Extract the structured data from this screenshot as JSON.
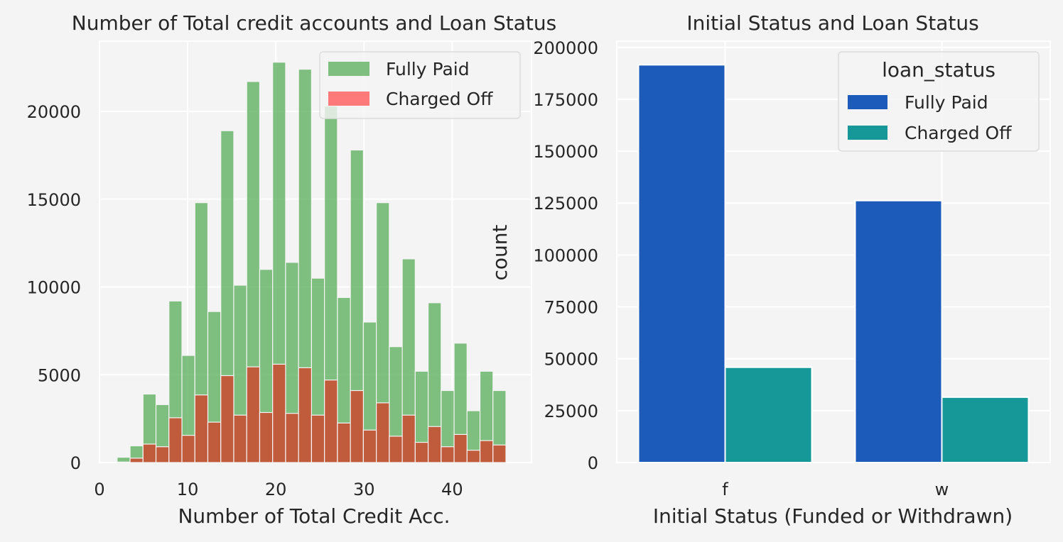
{
  "chart_data": [
    {
      "type": "bar",
      "subtype": "histogram-overlay",
      "title": "Number of Total credit accounts and Loan Status",
      "xlabel": "Number of Total Credit Acc.",
      "ylabel": "",
      "xlim": [
        0,
        49
      ],
      "ylim": [
        0,
        24000
      ],
      "xticks": [
        0,
        10,
        20,
        30,
        40
      ],
      "yticks": [
        0,
        5000,
        10000,
        15000,
        20000
      ],
      "grid": true,
      "legend_position": "top-right",
      "bin_width": 1.47,
      "bin_start": 2.0,
      "series": [
        {
          "name": "Fully Paid",
          "color": "#4ca64c",
          "values": [
            300,
            950,
            3900,
            3300,
            9200,
            6100,
            14800,
            8600,
            18900,
            10100,
            21700,
            11000,
            22800,
            11400,
            22400,
            10500,
            20300,
            9400,
            17800,
            8000,
            14800,
            6600,
            11600,
            5200,
            9100,
            4100,
            6800,
            2950,
            5200,
            4100
          ]
        },
        {
          "name": "Charged Off",
          "color": "#ff6b6b",
          "values": [
            30,
            250,
            1050,
            900,
            2550,
            1550,
            3850,
            2300,
            4950,
            2700,
            5450,
            2850,
            5600,
            2800,
            5400,
            2700,
            4700,
            2250,
            4100,
            1850,
            3400,
            1500,
            2700,
            1150,
            2050,
            900,
            1600,
            700,
            1250,
            1000
          ]
        }
      ],
      "overlap_color": "#c05c3c"
    },
    {
      "type": "bar",
      "title": "Initial Status and Loan Status",
      "xlabel": "Initial Status (Funded or Withdrawn)",
      "ylabel": "count",
      "categories": [
        "f",
        "w"
      ],
      "ylim": [
        0,
        203000
      ],
      "yticks": [
        0,
        25000,
        50000,
        75000,
        100000,
        125000,
        150000,
        175000,
        200000
      ],
      "grid": true,
      "legend_position": "top-right",
      "legend_title": "loan_status",
      "series": [
        {
          "name": "Fully Paid",
          "color": "#1c5bba",
          "values": [
            191600,
            126200
          ]
        },
        {
          "name": "Charged Off",
          "color": "#169898",
          "values": [
            45900,
            31500
          ]
        }
      ]
    }
  ]
}
